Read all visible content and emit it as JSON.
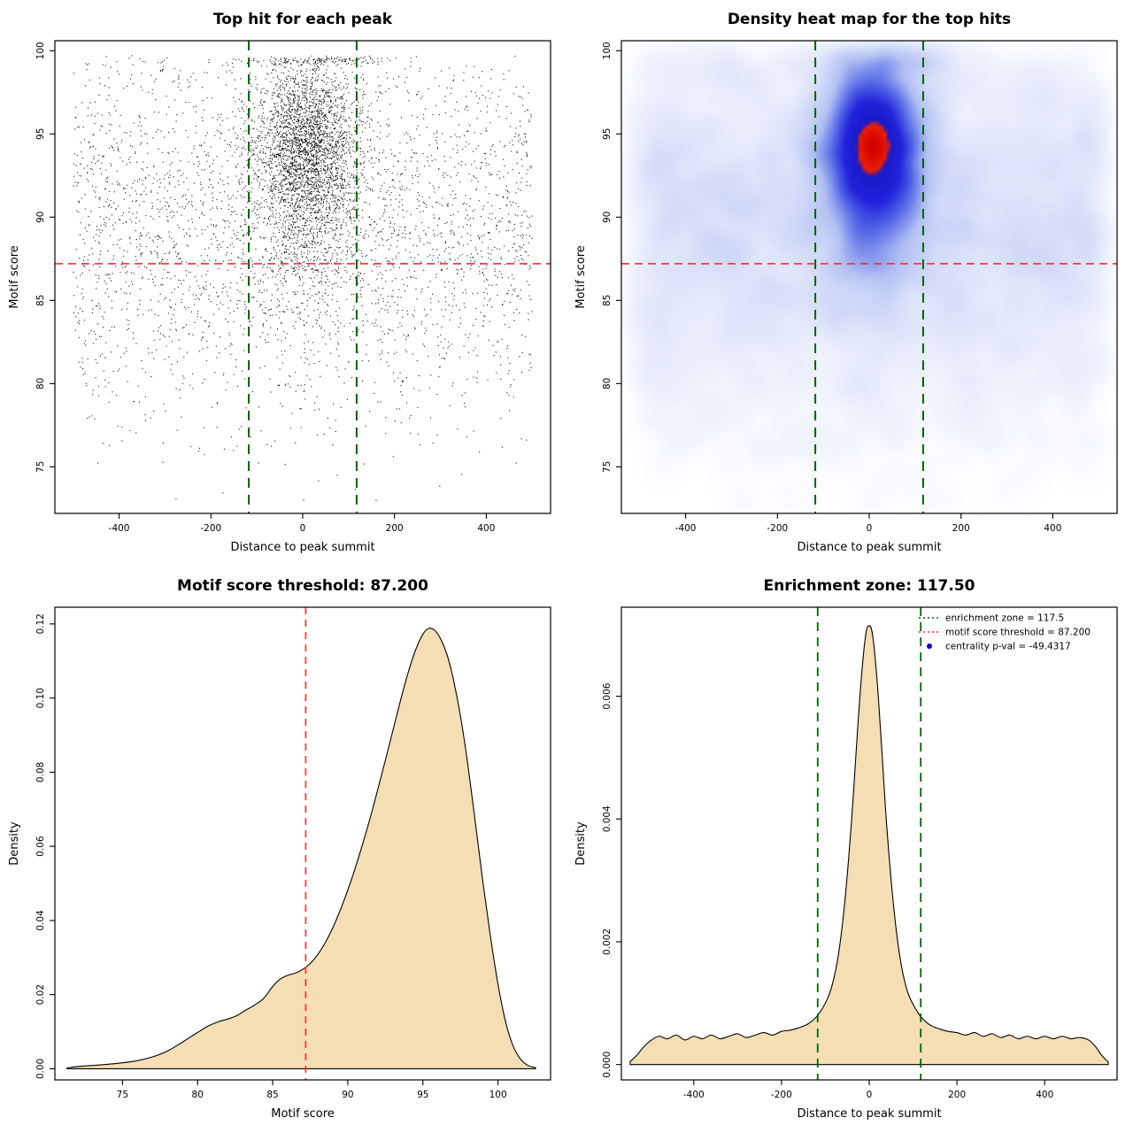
{
  "page": {
    "background": "#ffffff"
  },
  "chart_data": [
    {
      "id": "top-hit-scatter",
      "type": "scatter",
      "title": "Top hit for each peak",
      "xlabel": "Distance to peak summit",
      "ylabel": "Motif score",
      "xlim": [
        -540,
        540
      ],
      "ylim": [
        72.2,
        100.6
      ],
      "x_ticks": [
        -400,
        -200,
        0,
        200,
        400
      ],
      "x_tick_labels": [
        "-400",
        "-200",
        "0",
        "200",
        "400"
      ],
      "y_ticks": [
        75,
        80,
        85,
        90,
        95,
        100
      ],
      "y_tick_labels": [
        "75",
        "80",
        "85",
        "90",
        "95",
        "100"
      ],
      "point_color": "#000000",
      "threshold_line": {
        "value": 87.2,
        "color": "#ff2a2a",
        "style": "dashed",
        "orientation": "horizontal"
      },
      "zone_lines": {
        "values": [
          -117.5,
          117.5
        ],
        "color": "#006400",
        "style": "dashed",
        "orientation": "vertical"
      },
      "seed": 42,
      "point_clusters": [
        {
          "name": "background",
          "n": 3200,
          "x": {
            "dist": "uniform",
            "min": -500,
            "max": 500
          },
          "y": {
            "dist": "normal",
            "mean": 89.5,
            "sd": 6.0,
            "min": 72.8,
            "max": 99.7
          }
        },
        {
          "name": "central-core",
          "n": 2300,
          "x": {
            "dist": "normal",
            "mean": 8,
            "sd": 55,
            "min": -500,
            "max": 500
          },
          "y": {
            "dist": "normal",
            "mean": 94.6,
            "sd": 2.4,
            "min": 72.8,
            "max": 99.6
          }
        },
        {
          "name": "central-lower",
          "n": 900,
          "x": {
            "dist": "normal",
            "mean": 5,
            "sd": 62,
            "min": -500,
            "max": 500
          },
          "y": {
            "dist": "normal",
            "mean": 90.3,
            "sd": 3.2,
            "min": 72.8,
            "max": 99.6
          }
        },
        {
          "name": "top-row",
          "n": 140,
          "x": {
            "dist": "normal",
            "mean": 30,
            "sd": 90,
            "min": -400,
            "max": 400
          },
          "y": {
            "dist": "normal",
            "mean": 99.4,
            "sd": 0.12,
            "min": 99.1,
            "max": 99.7
          }
        }
      ]
    },
    {
      "id": "density-heatmap",
      "type": "density2d",
      "title": "Density heat map for the top hits",
      "xlabel": "Distance to peak summit",
      "ylabel": "Motif score",
      "xlim": [
        -540,
        540
      ],
      "ylim": [
        72.2,
        100.6
      ],
      "x_ticks": [
        -400,
        -200,
        0,
        200,
        400
      ],
      "x_tick_labels": [
        "-400",
        "-200",
        "0",
        "200",
        "400"
      ],
      "y_ticks": [
        75,
        80,
        85,
        90,
        95,
        100
      ],
      "y_tick_labels": [
        "75",
        "80",
        "85",
        "90",
        "95",
        "100"
      ],
      "threshold_line": {
        "value": 87.2,
        "color": "#ff2a2a",
        "style": "dashed",
        "orientation": "horizontal"
      },
      "zone_lines": {
        "values": [
          -117.5,
          117.5
        ],
        "color": "#006400",
        "style": "dashed",
        "orientation": "vertical"
      },
      "gamma": 0.55,
      "colormap": [
        [
          0,
          "#ffffff"
        ],
        [
          0.06,
          "#f6f8fe"
        ],
        [
          0.2,
          "#e0e6fa"
        ],
        [
          0.4,
          "#b2c0f4"
        ],
        [
          0.6,
          "#5064e6"
        ],
        [
          0.75,
          "#2222dd"
        ],
        [
          0.9,
          "#1a1ac8"
        ],
        [
          0.92,
          "#ee2200"
        ],
        [
          1,
          "#d40000"
        ]
      ]
    },
    {
      "id": "motif-score-density",
      "type": "area",
      "title": "Motif score threshold: 87.200",
      "xlabel": "Motif score",
      "ylabel": "Density",
      "xlim": [
        70.5,
        103.5
      ],
      "ylim": [
        -0.003,
        0.1245
      ],
      "x_ticks": [
        75,
        80,
        85,
        90,
        95,
        100
      ],
      "x_tick_labels": [
        "75",
        "80",
        "85",
        "90",
        "95",
        "100"
      ],
      "y_ticks": [
        0,
        0.02,
        0.04,
        0.06,
        0.08,
        0.1,
        0.12
      ],
      "y_tick_labels": [
        "0.00",
        "0.02",
        "0.04",
        "0.06",
        "0.08",
        "0.10",
        "0.12"
      ],
      "fill": "#f5deb3",
      "stroke": "#000000",
      "threshold_line": {
        "value": 87.2,
        "color": "#ff2a2a",
        "style": "dashed",
        "orientation": "vertical"
      },
      "curve": [
        [
          71.3,
          0.0002
        ],
        [
          72,
          0.0006
        ],
        [
          73,
          0.0009
        ],
        [
          74,
          0.0012
        ],
        [
          75,
          0.0016
        ],
        [
          76,
          0.0022
        ],
        [
          77,
          0.0032
        ],
        [
          78,
          0.0048
        ],
        [
          79,
          0.0072
        ],
        [
          80,
          0.0098
        ],
        [
          80.7,
          0.0115
        ],
        [
          81.4,
          0.0127
        ],
        [
          82,
          0.0134
        ],
        [
          82.6,
          0.0143
        ],
        [
          83.2,
          0.0158
        ],
        [
          83.8,
          0.0172
        ],
        [
          84.4,
          0.019
        ],
        [
          85,
          0.0222
        ],
        [
          85.5,
          0.0242
        ],
        [
          86,
          0.0252
        ],
        [
          86.5,
          0.0258
        ],
        [
          87,
          0.0268
        ],
        [
          87.5,
          0.0284
        ],
        [
          88,
          0.0308
        ],
        [
          88.5,
          0.034
        ],
        [
          89,
          0.038
        ],
        [
          89.5,
          0.0428
        ],
        [
          90,
          0.0482
        ],
        [
          90.5,
          0.0542
        ],
        [
          91,
          0.0608
        ],
        [
          91.5,
          0.0678
        ],
        [
          92,
          0.0754
        ],
        [
          92.5,
          0.0832
        ],
        [
          93,
          0.0912
        ],
        [
          93.5,
          0.0992
        ],
        [
          94,
          0.1066
        ],
        [
          94.5,
          0.1128
        ],
        [
          95,
          0.1172
        ],
        [
          95.4,
          0.1188
        ],
        [
          95.8,
          0.1182
        ],
        [
          96.2,
          0.1158
        ],
        [
          96.6,
          0.1118
        ],
        [
          97,
          0.1056
        ],
        [
          97.5,
          0.0952
        ],
        [
          98,
          0.0818
        ],
        [
          98.5,
          0.0662
        ],
        [
          99,
          0.0502
        ],
        [
          99.5,
          0.0356
        ],
        [
          100,
          0.0228
        ],
        [
          100.5,
          0.0128
        ],
        [
          101,
          0.0062
        ],
        [
          101.5,
          0.0026
        ],
        [
          102,
          0.0009
        ],
        [
          102.5,
          0.0003
        ]
      ]
    },
    {
      "id": "distance-density",
      "type": "area",
      "title": "Enrichment zone: 117.50",
      "xlabel": "Distance to peak summit",
      "ylabel": "Density",
      "xlim": [
        -565,
        565
      ],
      "ylim": [
        -0.00025,
        0.00745
      ],
      "x_ticks": [
        -400,
        -200,
        0,
        200,
        400
      ],
      "x_tick_labels": [
        "-400",
        "-200",
        "0",
        "200",
        "400"
      ],
      "y_ticks": [
        0,
        0.002,
        0.004,
        0.006
      ],
      "y_tick_labels": [
        "0.000",
        "0.002",
        "0.004",
        "0.006"
      ],
      "fill": "#f5deb3",
      "stroke": "#000000",
      "zone_lines": {
        "values": [
          -117.5,
          117.5
        ],
        "color": "#006400",
        "style": "dashed",
        "orientation": "vertical"
      },
      "legend": {
        "items": [
          {
            "label": "enrichment zone = 117.5",
            "color": "#006400",
            "marker": "dotted-line"
          },
          {
            "label": "motif score threshold = 87.200",
            "color": "#ff2a2a",
            "marker": "dotted-line"
          },
          {
            "label": "centrality p-val = -49.4317",
            "color": "#0000cc",
            "marker": "point"
          }
        ]
      },
      "curve": [
        [
          -545,
          5e-05
        ],
        [
          -530,
          0.00015
        ],
        [
          -515,
          0.00028
        ],
        [
          -500,
          0.00038
        ],
        [
          -480,
          0.00046
        ],
        [
          -460,
          0.00042
        ],
        [
          -440,
          0.00048
        ],
        [
          -420,
          0.0004
        ],
        [
          -400,
          0.00046
        ],
        [
          -380,
          0.00042
        ],
        [
          -360,
          0.00048
        ],
        [
          -340,
          0.00042
        ],
        [
          -320,
          0.00046
        ],
        [
          -300,
          0.0005
        ],
        [
          -280,
          0.00044
        ],
        [
          -260,
          0.00048
        ],
        [
          -240,
          0.00052
        ],
        [
          -220,
          0.00048
        ],
        [
          -200,
          0.00054
        ],
        [
          -180,
          0.00056
        ],
        [
          -160,
          0.0006
        ],
        [
          -140,
          0.00066
        ],
        [
          -120,
          0.00078
        ],
        [
          -100,
          0.001
        ],
        [
          -85,
          0.00128
        ],
        [
          -70,
          0.0018
        ],
        [
          -55,
          0.0027
        ],
        [
          -40,
          0.004
        ],
        [
          -28,
          0.0053
        ],
        [
          -18,
          0.0063
        ],
        [
          -8,
          0.007
        ],
        [
          0,
          0.00715
        ],
        [
          8,
          0.00698
        ],
        [
          18,
          0.00625
        ],
        [
          28,
          0.0052
        ],
        [
          40,
          0.00388
        ],
        [
          55,
          0.00262
        ],
        [
          70,
          0.00175
        ],
        [
          85,
          0.00124
        ],
        [
          100,
          0.00098
        ],
        [
          120,
          0.00076
        ],
        [
          140,
          0.00064
        ],
        [
          160,
          0.00058
        ],
        [
          180,
          0.00054
        ],
        [
          200,
          0.00052
        ],
        [
          220,
          0.00048
        ],
        [
          240,
          0.00052
        ],
        [
          260,
          0.00046
        ],
        [
          280,
          0.0005
        ],
        [
          300,
          0.00044
        ],
        [
          320,
          0.00048
        ],
        [
          340,
          0.00042
        ],
        [
          360,
          0.00046
        ],
        [
          380,
          0.00042
        ],
        [
          400,
          0.00046
        ],
        [
          420,
          0.00042
        ],
        [
          440,
          0.00046
        ],
        [
          460,
          0.00042
        ],
        [
          480,
          0.00044
        ],
        [
          500,
          0.0004
        ],
        [
          515,
          0.0003
        ],
        [
          530,
          0.00015
        ],
        [
          545,
          4e-05
        ]
      ]
    }
  ]
}
